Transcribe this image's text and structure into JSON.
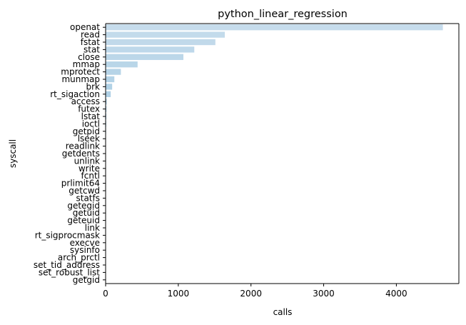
{
  "chart_data": {
    "type": "bar",
    "orientation": "horizontal",
    "title": "python_linear_regression",
    "xlabel": "calls",
    "ylabel": "syscall",
    "xlim": [
      0,
      4860
    ],
    "xticks": [
      0,
      1000,
      2000,
      3000,
      4000
    ],
    "grid": false,
    "color_scale": [
      "#c6dcec",
      "#9ac6df",
      "#5fa1cc"
    ],
    "categories": [
      "openat",
      "read",
      "fstat",
      "stat",
      "close",
      "mmap",
      "mprotect",
      "munmap",
      "brk",
      "rt_sigaction",
      "access",
      "futex",
      "lstat",
      "ioctl",
      "getpid",
      "lseek",
      "readlink",
      "getdents",
      "unlink",
      "write",
      "fcntl",
      "prlimit64",
      "getcwd",
      "statfs",
      "getegid",
      "getuid",
      "geteuid",
      "link",
      "rt_sigprocmask",
      "execve",
      "sysinfo",
      "arch_prctl",
      "set_tid_address",
      "set_robust_list",
      "getgid"
    ],
    "values": [
      4640,
      1640,
      1510,
      1220,
      1070,
      440,
      210,
      120,
      90,
      70,
      15,
      12,
      10,
      8,
      6,
      5,
      4,
      4,
      3,
      3,
      3,
      2,
      2,
      2,
      1,
      1,
      1,
      1,
      1,
      1,
      1,
      1,
      1,
      1,
      1
    ]
  }
}
